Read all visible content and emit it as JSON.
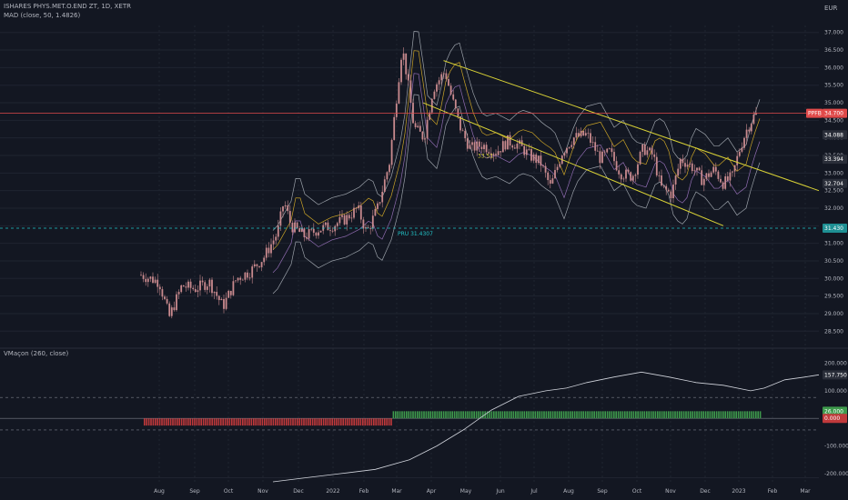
{
  "header": {
    "symbol_line": "ISHARES PHYS.MET.O.END ZT, 1D, XETR",
    "indicator_line": "MAD (close, 50, 1.4826)",
    "osc_title": "VMaçon (260, close)",
    "currency": "EUR"
  },
  "colors": {
    "background": "#131722",
    "grid": "#1f2430",
    "candle": "#c98a8e",
    "channel": "#d9d236",
    "band": "#9aa0a8",
    "envelope": "#c9a227",
    "inner": "#8f6bb0",
    "prev_close": "#e04a4a",
    "pru_line": "#22c3c7",
    "osc_line": "#d1d4dc",
    "hist_pos": "#3e9a4c",
    "hist_neg": "#c0393b"
  },
  "chart_data": [
    {
      "type": "candlestick",
      "ylim": [
        28.3,
        37.2
      ],
      "x_ticks": [
        "Aug",
        "Sep",
        "Oct",
        "Nov",
        "Dec",
        "2022",
        "Feb",
        "Mar",
        "Apr",
        "May",
        "Jun",
        "Jul",
        "Aug",
        "Sep",
        "Oct",
        "Nov",
        "Dec",
        "2023",
        "Feb",
        "Mar"
      ],
      "y_ticks": [
        "37.000",
        "36.500",
        "36.000",
        "35.500",
        "35.000",
        "34.500",
        "34.000",
        "33.500",
        "33.000",
        "32.500",
        "32.000",
        "31.500",
        "31.000",
        "30.500",
        "30.000",
        "29.500",
        "29.000",
        "28.500"
      ],
      "price_tags": [
        {
          "label": "PPFB",
          "value": "34.700",
          "level": 34.7,
          "color": "#e04a4a"
        },
        {
          "value": "34.088",
          "level": 34.088,
          "color": "#2a2e39"
        },
        {
          "value": "33.394",
          "level": 33.394,
          "color": "#2a2e39"
        },
        {
          "value": "32.704",
          "level": 32.704,
          "color": "#2a2e39"
        },
        {
          "value": "31.430",
          "level": 31.43,
          "color": "#1e8f93"
        }
      ],
      "annotations": [
        {
          "text": "PRU 31.4307",
          "level": 31.4307
        },
        {
          "text": "33.51",
          "level": 33.51
        }
      ],
      "channel": {
        "upper": [
          [
            0.45,
            36.2
          ],
          [
            1.0,
            32.5
          ]
        ],
        "lower": [
          [
            0.42,
            35.0
          ],
          [
            0.86,
            31.5
          ]
        ]
      }
    },
    {
      "type": "line",
      "title": "VMaçon (260, close)",
      "ylim": [
        -230,
        215
      ],
      "y_ticks": [
        "200.000",
        "100.000",
        "0.000",
        "-100.000",
        "-200.000"
      ],
      "levels": [
        76,
        0,
        -42
      ],
      "value_tags": [
        {
          "value": "157.750",
          "level": 157.75,
          "color": "#2a2e39"
        },
        {
          "value": "26.000",
          "level": 26,
          "color": "#3e9a4c"
        },
        {
          "value": "0.000",
          "level": 0,
          "color": "#c0393b"
        }
      ],
      "series_x": [
        0.2,
        0.25,
        0.3,
        0.35,
        0.4,
        0.44,
        0.48,
        0.52,
        0.56,
        0.6,
        0.63,
        0.66,
        0.7,
        0.74,
        0.78,
        0.82,
        0.86,
        0.9,
        0.92,
        0.95,
        0.98,
        1.0
      ],
      "series_y": [
        -230,
        -215,
        -200,
        -185,
        -150,
        -100,
        -40,
        30,
        80,
        100,
        110,
        130,
        150,
        168,
        150,
        130,
        120,
        100,
        110,
        140,
        150,
        158
      ],
      "hist_switch": 0.375
    }
  ]
}
